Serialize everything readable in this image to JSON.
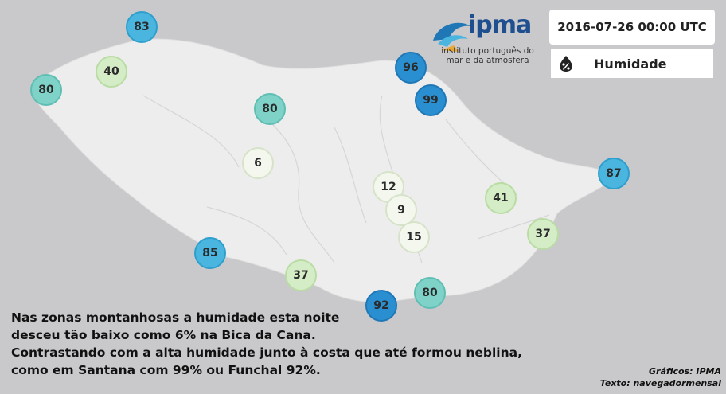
{
  "logo": {
    "brand": "ipma",
    "subtitle_line1": "instituto português do",
    "subtitle_line2": "mar e da atmosfera"
  },
  "header": {
    "datetime": "2016-07-26 00:00 UTC",
    "variable": "Humidade",
    "variable_icon": "humidity-drop-icon"
  },
  "colors": {
    "background": "#c9c9cc",
    "land": "#ededed",
    "low": "#f3f7ee",
    "mid": "#d5edc6",
    "teal": "#7ed2c8",
    "sky": "#4ab6e0",
    "deep": "#2a8fd0"
  },
  "stations": [
    {
      "value": "83",
      "level": "sky"
    },
    {
      "value": "40",
      "level": "mid"
    },
    {
      "value": "80",
      "level": "teal"
    },
    {
      "value": "80",
      "level": "teal"
    },
    {
      "value": "6",
      "level": "low"
    },
    {
      "value": "96",
      "level": "deep"
    },
    {
      "value": "99",
      "level": "deep"
    },
    {
      "value": "12",
      "level": "low"
    },
    {
      "value": "9",
      "level": "low"
    },
    {
      "value": "15",
      "level": "low"
    },
    {
      "value": "41",
      "level": "mid"
    },
    {
      "value": "87",
      "level": "sky"
    },
    {
      "value": "37",
      "level": "mid"
    },
    {
      "value": "85",
      "level": "sky"
    },
    {
      "value": "37",
      "level": "mid"
    },
    {
      "value": "80",
      "level": "teal"
    },
    {
      "value": "92",
      "level": "deep"
    }
  ],
  "caption": {
    "line1": "Nas zonas montanhosas a humidade esta noite",
    "line2": "desceu tão baixo como 6% na Bica da Cana.",
    "line3": "Contrastando com a alta humidade junto à costa que até formou neblina,",
    "line4": "como em Santana com 99% ou Funchal 92%."
  },
  "credits": {
    "graphics": "Gráficos: IPMA",
    "text": "Texto: navegadormensal"
  }
}
